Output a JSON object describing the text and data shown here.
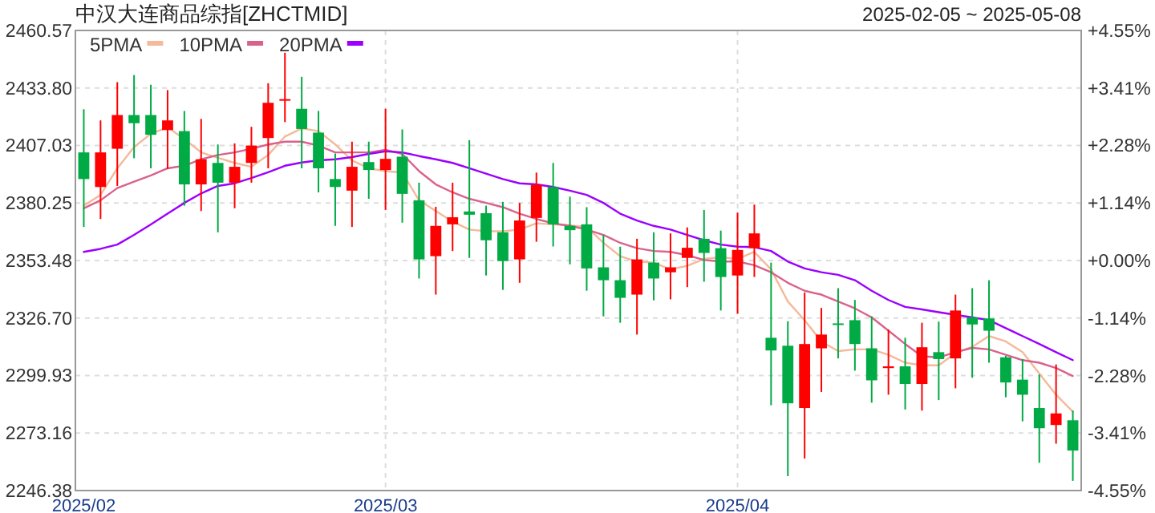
{
  "chart_data": {
    "type": "candlestick",
    "title": "中汉大连商品综指[ZHCTMID]",
    "subtitle": "2025-02-05 ~ 2025-05-08",
    "categories": [
      "2025/02",
      null,
      null,
      null,
      null,
      null,
      null,
      null,
      null,
      null,
      null,
      null,
      null,
      null,
      null,
      null,
      null,
      null,
      "2025/03",
      null,
      null,
      null,
      null,
      null,
      null,
      null,
      null,
      null,
      null,
      null,
      null,
      null,
      null,
      null,
      null,
      null,
      null,
      null,
      null,
      "2025/04",
      null,
      null,
      null,
      null,
      null,
      null,
      null,
      null,
      null,
      null,
      null,
      null,
      null,
      null,
      null,
      null,
      null,
      null,
      null,
      null
    ],
    "ohlc": [
      [
        2403.8,
        2423.9,
        2369.1,
        2391.4
      ],
      [
        2387.7,
        2418.7,
        2372.8,
        2403.8
      ],
      [
        2405.5,
        2436.5,
        2388.2,
        2421.2
      ],
      [
        2421.2,
        2439.8,
        2401.1,
        2417.4
      ],
      [
        2421.2,
        2435.3,
        2396.4,
        2412.0
      ],
      [
        2414.2,
        2432.8,
        2396.1,
        2418.7
      ],
      [
        2413.7,
        2423.1,
        2379.0,
        2388.9
      ],
      [
        2388.9,
        2419.4,
        2376.5,
        2400.6
      ],
      [
        2398.9,
        2407.5,
        2366.6,
        2389.7
      ],
      [
        2389.7,
        2408.0,
        2377.8,
        2397.1
      ],
      [
        2398.9,
        2415.7,
        2389.7,
        2407.0
      ],
      [
        2410.5,
        2436.0,
        2396.4,
        2426.9
      ],
      [
        2427.9,
        2450.2,
        2417.9,
        2428.6
      ],
      [
        2424.1,
        2439.0,
        2396.4,
        2414.7
      ],
      [
        2413.0,
        2423.1,
        2385.2,
        2396.4
      ],
      [
        2391.4,
        2403.3,
        2369.6,
        2387.7
      ],
      [
        2386.0,
        2408.8,
        2369.1,
        2397.1
      ],
      [
        2399.3,
        2408.8,
        2382.2,
        2395.6
      ],
      [
        2395.6,
        2424.1,
        2377.0,
        2400.8
      ],
      [
        2401.8,
        2414.5,
        2371.1,
        2384.5
      ],
      [
        2381.5,
        2389.7,
        2345.1,
        2354.0
      ],
      [
        2355.5,
        2378.5,
        2337.6,
        2369.6
      ],
      [
        2370.3,
        2389.7,
        2357.9,
        2373.6
      ],
      [
        2376.3,
        2409.5,
        2354.7,
        2374.8
      ],
      [
        2375.5,
        2379.0,
        2346.5,
        2362.9
      ],
      [
        2366.6,
        2380.8,
        2339.8,
        2353.2
      ],
      [
        2354.0,
        2380.3,
        2343.1,
        2372.1
      ],
      [
        2373.3,
        2394.4,
        2362.2,
        2388.7
      ],
      [
        2387.7,
        2398.9,
        2360.0,
        2370.3
      ],
      [
        2369.6,
        2383.2,
        2351.7,
        2367.6
      ],
      [
        2370.3,
        2378.3,
        2339.4,
        2349.8
      ],
      [
        2350.3,
        2365.4,
        2327.5,
        2344.3
      ],
      [
        2344.3,
        2359.9,
        2324.5,
        2336.1
      ],
      [
        2337.6,
        2363.6,
        2319.0,
        2354.0
      ],
      [
        2352.5,
        2366.6,
        2334.9,
        2345.1
      ],
      [
        2348.0,
        2366.1,
        2335.4,
        2350.3
      ],
      [
        2354.7,
        2368.9,
        2341.1,
        2359.4
      ],
      [
        2363.6,
        2377.0,
        2343.6,
        2357.0
      ],
      [
        2359.2,
        2367.4,
        2330.2,
        2345.8
      ],
      [
        2346.5,
        2375.8,
        2328.7,
        2358.4
      ],
      [
        2359.2,
        2379.5,
        2345.8,
        2366.1
      ],
      [
        2317.5,
        2352.5,
        2286.1,
        2311.6
      ],
      [
        2313.8,
        2325.2,
        2253.1,
        2287.0
      ],
      [
        2284.8,
        2338.6,
        2261.3,
        2314.6
      ],
      [
        2312.6,
        2331.4,
        2292.3,
        2319.0
      ],
      [
        2324.2,
        2340.6,
        2307.9,
        2323.7
      ],
      [
        2325.7,
        2335.1,
        2302.2,
        2314.6
      ],
      [
        2312.6,
        2327.5,
        2287.3,
        2297.7
      ],
      [
        2303.4,
        2321.3,
        2291.0,
        2304.2
      ],
      [
        2304.2,
        2317.5,
        2284.1,
        2296.0
      ],
      [
        2296.0,
        2324.5,
        2283.6,
        2313.1
      ],
      [
        2310.8,
        2325.0,
        2288.5,
        2307.6
      ],
      [
        2307.9,
        2337.6,
        2294.0,
        2330.2
      ],
      [
        2327.0,
        2340.6,
        2298.9,
        2323.7
      ],
      [
        2326.5,
        2344.3,
        2305.9,
        2320.8
      ],
      [
        2308.4,
        2309.1,
        2289.8,
        2296.7
      ],
      [
        2298.0,
        2307.6,
        2278.6,
        2291.0
      ],
      [
        2284.8,
        2300.4,
        2259.3,
        2275.4
      ],
      [
        2276.9,
        2305.1,
        2268.2,
        2282.3
      ],
      [
        2279.1,
        2283.6,
        2250.9,
        2265.0
      ]
    ],
    "colors": [
      "#00aa44",
      "#ff0000",
      "#ff0000",
      "#00aa44",
      "#00aa44",
      "#ff0000",
      "#00aa44",
      "#ff0000",
      "#00aa44",
      "#ff0000",
      "#ff0000",
      "#ff0000",
      "#ff0000",
      "#00aa44",
      "#00aa44",
      "#00aa44",
      "#ff0000",
      "#00aa44",
      "#ff0000",
      "#00aa44",
      "#00aa44",
      "#ff0000",
      "#ff0000",
      "#00aa44",
      "#00aa44",
      "#00aa44",
      "#ff0000",
      "#ff0000",
      "#00aa44",
      "#00aa44",
      "#00aa44",
      "#00aa44",
      "#00aa44",
      "#ff0000",
      "#00aa44",
      "#ff0000",
      "#ff0000",
      "#00aa44",
      "#00aa44",
      "#ff0000",
      "#ff0000",
      "#00aa44",
      "#00aa44",
      "#ff0000",
      "#ff0000",
      "#00aa44",
      "#00aa44",
      "#00aa44",
      "#ff0000",
      "#00aa44",
      "#ff0000",
      "#00aa44",
      "#ff0000",
      "#00aa44",
      "#00aa44",
      "#00aa44",
      "#00aa44",
      "#00aa44",
      "#ff0000",
      "#00aa44"
    ],
    "series": [
      {
        "name": "5PMA",
        "type": "line",
        "color": "#f5b99a",
        "values": [
          2379.0,
          2384.0,
          2396.4,
          2406.3,
          2412.5,
          2415.5,
          2410.0,
          2403.8,
          2401.3,
          2398.9,
          2397.1,
          2402.6,
          2411.2,
          2415.0,
          2413.7,
          2407.5,
          2400.1,
          2396.4,
          2395.1,
          2394.4,
          2381.5,
          2376.5,
          2371.6,
          2367.9,
          2367.1,
          2367.1,
          2367.9,
          2370.8,
          2370.3,
          2369.8,
          2369.1,
          2361.7,
          2355.5,
          2353.0,
          2352.5,
          2349.3,
          2351.0,
          2354.2,
          2355.0,
          2354.2,
          2357.5,
          2349.3,
          2334.4,
          2325.7,
          2315.8,
          2311.3,
          2312.1,
          2312.1,
          2309.6,
          2305.9,
          2304.7,
          2304.7,
          2310.4,
          2313.3,
          2318.3,
          2315.8,
          2310.8,
          2300.9,
          2291.0,
          2283.1
        ]
      },
      {
        "name": "10PMA",
        "type": "line",
        "color": "#d9628c",
        "values": [
          2377.8,
          2381.5,
          2387.2,
          2390.2,
          2393.1,
          2396.4,
          2397.6,
          2400.6,
          2402.6,
          2403.8,
          2405.5,
          2407.5,
          2408.8,
          2408.8,
          2407.0,
          2403.8,
          2403.8,
          2403.8,
          2405.0,
          2403.1,
          2395.1,
          2388.9,
          2385.2,
          2382.2,
          2380.3,
          2378.3,
          2375.3,
          2372.8,
          2370.8,
          2369.6,
          2367.9,
          2365.4,
          2361.7,
          2359.2,
          2357.9,
          2357.5,
          2356.0,
          2353.7,
          2353.0,
          2353.0,
          2351.3,
          2348.0,
          2343.1,
          2339.4,
          2337.6,
          2334.4,
          2331.2,
          2327.0,
          2320.8,
          2314.6,
          2308.9,
          2308.4,
          2310.8,
          2312.8,
          2312.1,
          2309.6,
          2307.1,
          2305.9,
          2303.4,
          2299.7
        ]
      },
      {
        "name": "20PMA",
        "type": "line",
        "color": "#9b00ff",
        "values": [
          2357.5,
          2358.9,
          2360.9,
          2365.4,
          2370.3,
          2375.3,
          2380.3,
          2384.7,
          2388.2,
          2389.4,
          2391.9,
          2394.6,
          2397.6,
          2399.1,
          2400.1,
          2400.6,
          2401.6,
          2403.1,
          2404.3,
          2403.8,
          2402.1,
          2400.6,
          2398.9,
          2396.4,
          2393.9,
          2391.4,
          2389.4,
          2388.9,
          2387.7,
          2386.0,
          2384.0,
          2380.3,
          2375.3,
          2372.1,
          2369.6,
          2367.9,
          2365.4,
          2362.9,
          2360.9,
          2359.9,
          2359.7,
          2357.9,
          2353.0,
          2349.8,
          2348.0,
          2346.8,
          2344.3,
          2339.4,
          2335.1,
          2331.9,
          2330.7,
          2329.4,
          2328.2,
          2327.0,
          2325.7,
          2322.0,
          2318.3,
          2314.6,
          2310.8,
          2307.1
        ]
      }
    ],
    "ylim": [
      2246.38,
      2460.57
    ],
    "yticks": [
      2460.57,
      {
        "value": 2433.8,
        "label": "2433.80"
      },
      2407.03,
      2380.25,
      2353.48,
      {
        "value": 2326.7,
        "label": "2326.70"
      },
      2299.93,
      2273.16,
      2246.38
    ],
    "y2lim": [
      -4.55,
      4.55
    ],
    "y2ticks": [
      {
        "value": 4.55,
        "label": "+4.55%"
      },
      {
        "value": 3.41,
        "label": "+3.41%"
      },
      {
        "value": 2.28,
        "label": "+2.28%"
      },
      {
        "value": 1.14,
        "label": "+1.14%"
      },
      {
        "value": 0,
        "label": "+0.00%"
      },
      {
        "value": -1.14,
        "label": "-1.14%"
      },
      {
        "value": -2.28,
        "label": "-2.28%"
      },
      {
        "value": -3.41,
        "label": "-3.41%"
      },
      {
        "value": -4.55,
        "label": "-4.55%"
      }
    ],
    "grid": true,
    "legend": "top left"
  }
}
